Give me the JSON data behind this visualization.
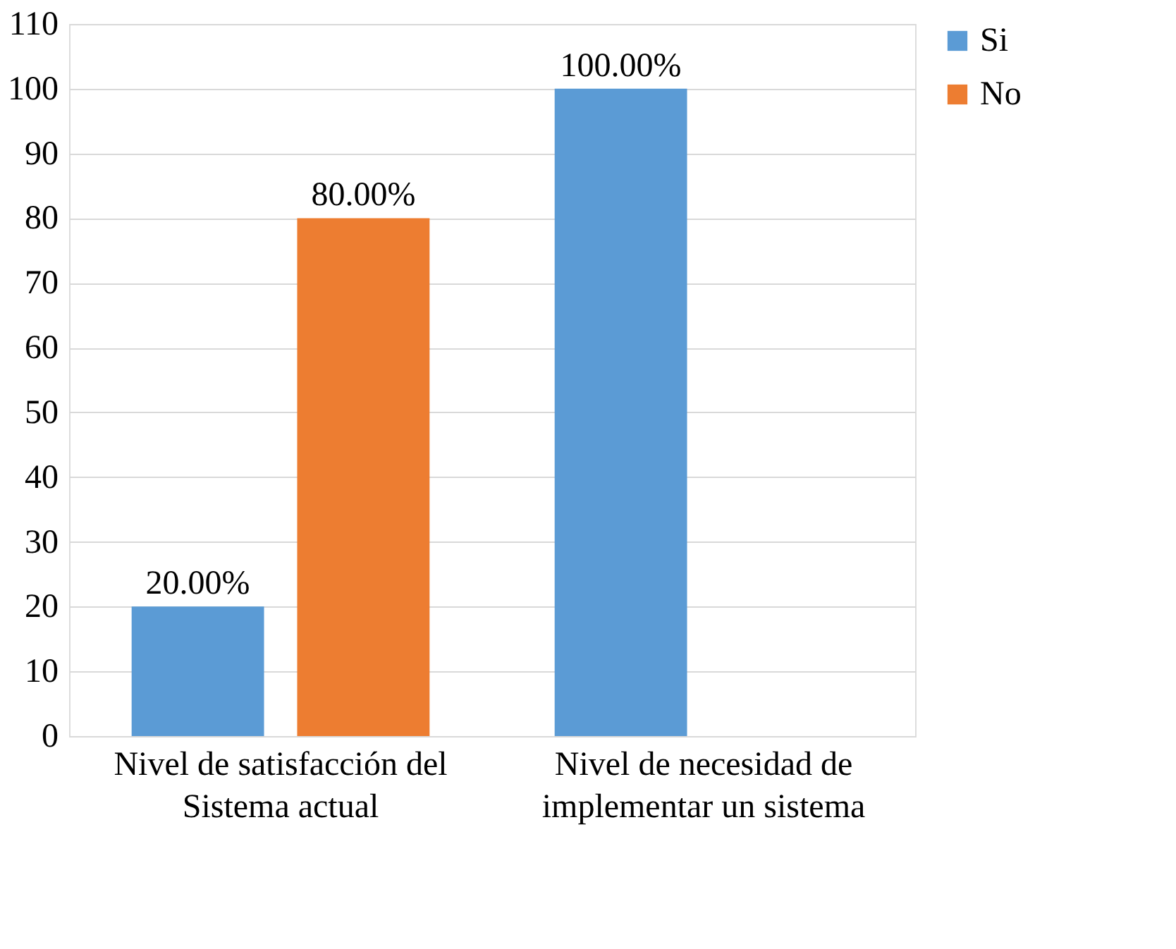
{
  "chart_data": {
    "type": "bar",
    "categories": [
      "Nivel de satisfacción del Sistema actual",
      "Nivel de necesidad de implementar un sistema"
    ],
    "series": [
      {
        "name": "Si",
        "color": "#5b9bd5",
        "values": [
          20,
          100
        ],
        "value_labels": [
          "20.00%",
          "100.00%"
        ]
      },
      {
        "name": "No",
        "color": "#ed7d31",
        "values": [
          80,
          null
        ],
        "value_labels": [
          "80.00%",
          null
        ]
      }
    ],
    "ylim": [
      0,
      110
    ],
    "yticks": [
      0,
      10,
      20,
      30,
      40,
      50,
      60,
      70,
      80,
      90,
      100,
      110
    ],
    "grid": "y",
    "legend": "right"
  }
}
